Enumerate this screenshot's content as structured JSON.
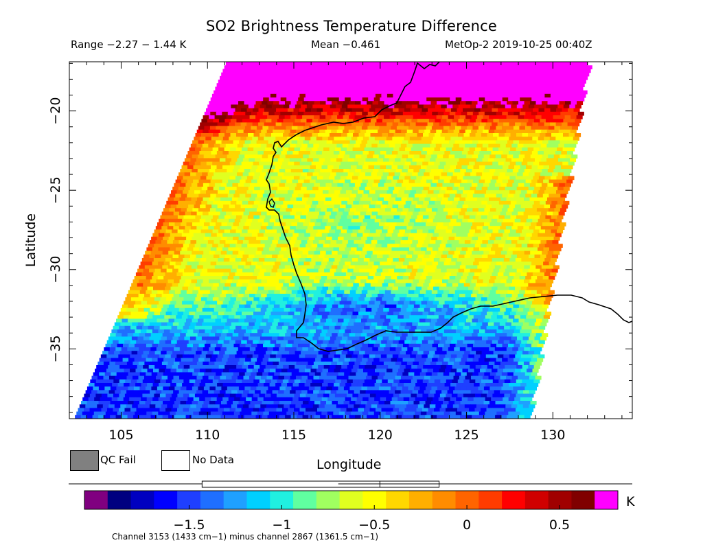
{
  "title": "SO2 Brightness Temperature Difference",
  "stats": {
    "range": "Range −2.27 − 1.44 K",
    "mean": "Mean −0.461",
    "satellite_time": "MetOp-2 2019-10-25 00:40Z"
  },
  "axes": {
    "xlabel": "Longitude",
    "ylabel": "Latitude",
    "x_ticks": [
      "105",
      "110",
      "115",
      "120",
      "125",
      "130"
    ],
    "y_ticks": [
      "−20",
      "−25",
      "−30",
      "−35"
    ],
    "x_range": [
      102,
      134.6
    ],
    "y_range": [
      -39.4,
      -16.9
    ]
  },
  "legend": {
    "qc_fail": "QC Fail",
    "no_data": "No Data",
    "qc_fail_color": "#808080",
    "no_data_color": "#ffffff"
  },
  "colorbar": {
    "unit": "K",
    "tick_labels": [
      "−1.5",
      "−1",
      "−0.5",
      "0",
      "0.5"
    ],
    "tick_values": [
      -1.5,
      -1.0,
      -0.5,
      0.0,
      0.5
    ],
    "value_range": [
      -1.94,
      0.69
    ],
    "colors": [
      "#800080",
      "#000080",
      "#0000c0",
      "#0000ff",
      "#1f3fff",
      "#1f6fff",
      "#1fa0ff",
      "#00d0ff",
      "#20f0e0",
      "#60ffa0",
      "#a0ff60",
      "#e0ff20",
      "#ffff00",
      "#ffd700",
      "#ffaf00",
      "#ff8c00",
      "#ff6400",
      "#ff3c00",
      "#ff0000",
      "#d00000",
      "#a00000",
      "#800000",
      "#ff00ff"
    ],
    "boxplot": {
      "min": -1.43,
      "q1": -0.88,
      "median": -0.47,
      "q3": -0.15
    }
  },
  "footnote": "Channel 3153 (1433 cm−1) minus channel 2867 (1361.5 cm−1)"
}
